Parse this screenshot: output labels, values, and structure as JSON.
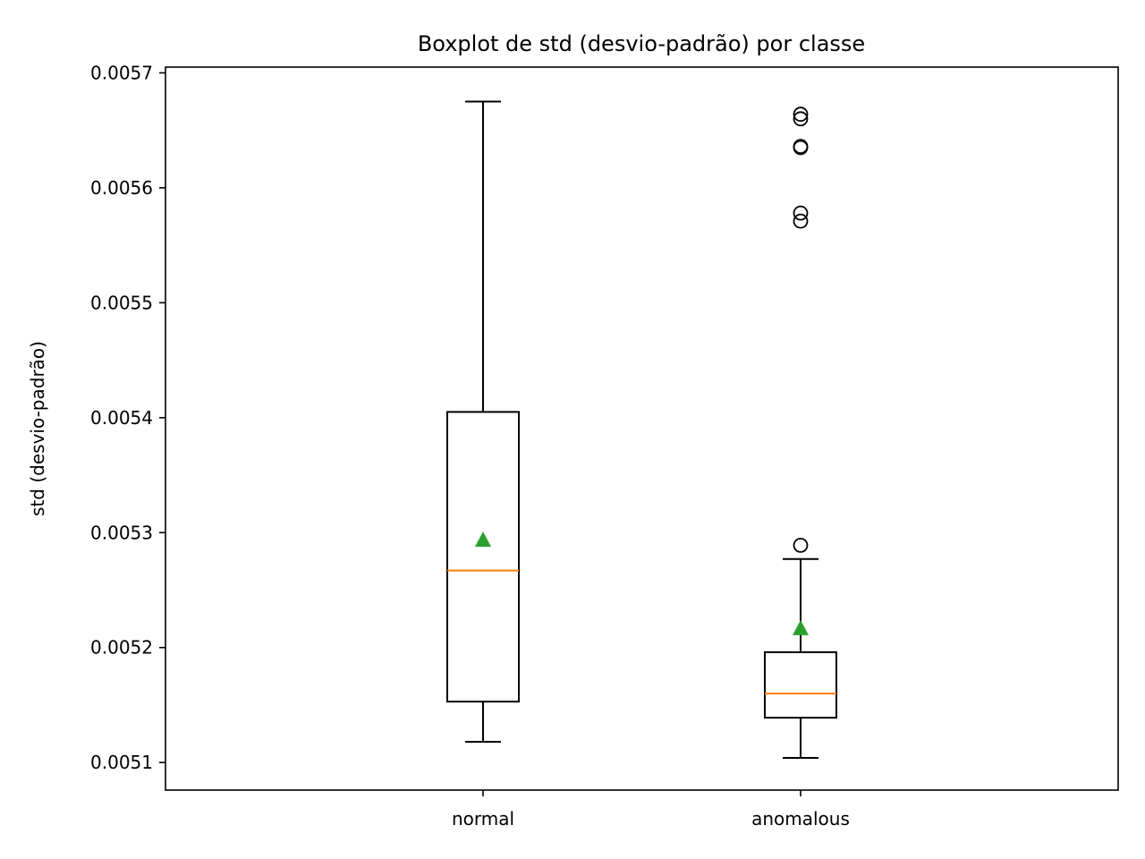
{
  "chart_data": {
    "type": "boxplot",
    "title": "Boxplot de std (desvio-padrão) por classe",
    "xlabel": "",
    "ylabel": "std (desvio-padrão)",
    "ylim": [
      0.005076,
      0.005705
    ],
    "yticks": [
      0.0051,
      0.0052,
      0.0053,
      0.0054,
      0.0055,
      0.0056,
      0.0057
    ],
    "ytick_labels": [
      "0.0051",
      "0.0052",
      "0.0053",
      "0.0054",
      "0.0055",
      "0.0056",
      "0.0057"
    ],
    "categories": [
      "normal",
      "anomalous"
    ],
    "grid": false,
    "colors": {
      "box": "#000000",
      "median": "#ff7f0e",
      "mean": "#2ca02c"
    },
    "boxes": [
      {
        "label": "normal",
        "whisker_low": 0.005118,
        "q1": 0.005153,
        "median": 0.005267,
        "q3": 0.005405,
        "whisker_high": 0.005675,
        "mean": 0.005294,
        "outliers": []
      },
      {
        "label": "anomalous",
        "whisker_low": 0.005104,
        "q1": 0.005139,
        "median": 0.00516,
        "q3": 0.005196,
        "whisker_high": 0.005277,
        "mean": 0.005217,
        "outliers": [
          0.005289,
          0.005571,
          0.005578,
          0.005635,
          0.005636,
          0.00566,
          0.005664
        ]
      }
    ]
  }
}
